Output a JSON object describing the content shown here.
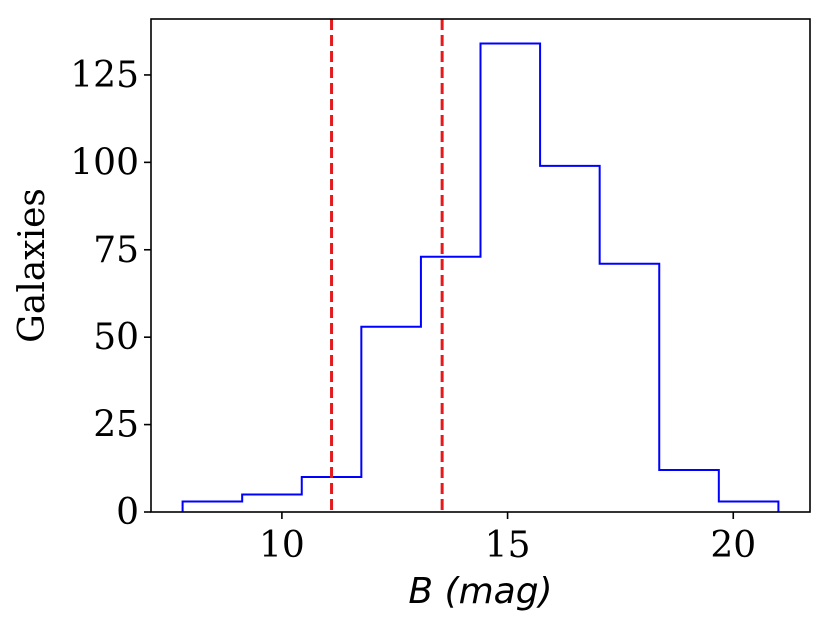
{
  "chart_data": {
    "type": "histogram",
    "xlabel": "B (mag)",
    "ylabel": "Galaxies",
    "xlim": [
      7.1,
      21.7
    ],
    "ylim": [
      0,
      141
    ],
    "x_ticks": [
      10,
      15,
      20
    ],
    "y_ticks": [
      0,
      25,
      50,
      75,
      100,
      125
    ],
    "bin_edges": [
      7.8,
      9.12,
      10.44,
      11.76,
      13.08,
      14.4,
      15.72,
      17.04,
      18.36,
      19.68,
      21.0
    ],
    "counts": [
      3,
      5,
      10,
      53,
      73,
      134,
      99,
      71,
      12,
      3
    ],
    "reference_lines": [
      11.1,
      13.55
    ],
    "colors": {
      "histogram": "#0000ff",
      "reference_line": "#e41a1c",
      "axes": "#000000"
    },
    "grid": false
  }
}
